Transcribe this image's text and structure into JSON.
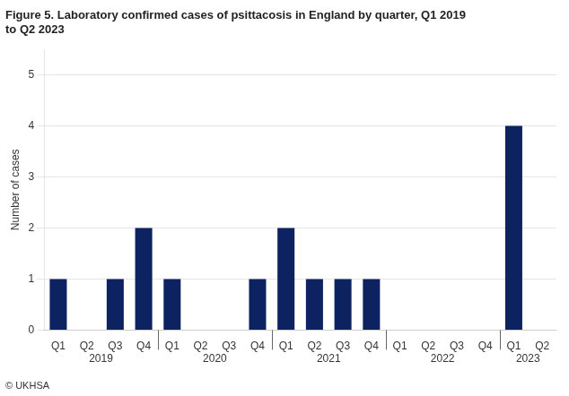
{
  "chart_data": {
    "type": "bar",
    "title": [
      "Figure 5. Laboratory confirmed cases of psittacosis in England by quarter, Q1 2019",
      "to Q2 2023"
    ],
    "ylabel": "Number of cases",
    "categories": [
      "Q1",
      "Q2",
      "Q3",
      "Q4",
      "Q1",
      "Q2",
      "Q3",
      "Q4",
      "Q1",
      "Q2",
      "Q3",
      "Q4",
      "Q1",
      "Q2",
      "Q3",
      "Q4",
      "Q1",
      "Q2"
    ],
    "values": [
      1,
      0,
      1,
      2,
      1,
      0,
      0,
      1,
      2,
      1,
      1,
      1,
      0,
      0,
      0,
      0,
      4,
      0
    ],
    "groups": [
      {
        "name": "2019",
        "size": 4
      },
      {
        "name": "2020",
        "size": 4
      },
      {
        "name": "2021",
        "size": 4
      },
      {
        "name": "2022",
        "size": 4
      },
      {
        "name": "2023",
        "size": 2
      }
    ],
    "color": "#0d2260",
    "ylim": [
      0,
      5.5
    ],
    "yticks": [
      0,
      1,
      2,
      3,
      4,
      5
    ],
    "grid": true,
    "footer": "© UKHSA"
  }
}
